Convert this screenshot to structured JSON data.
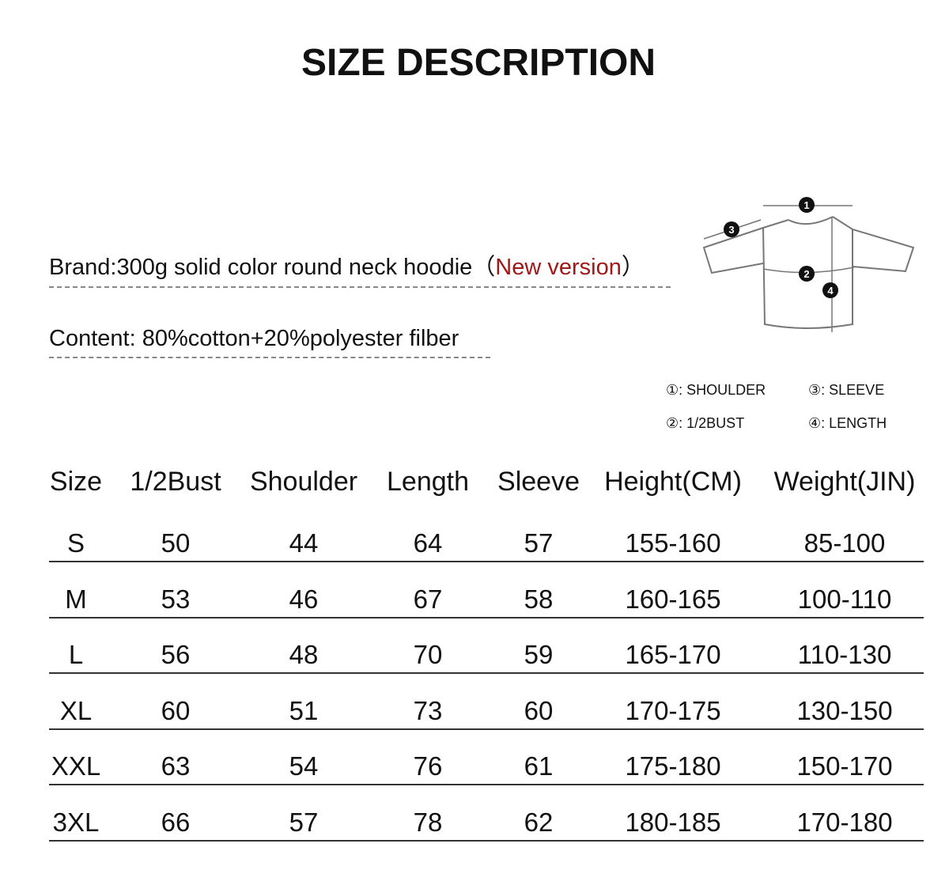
{
  "title": "SIZE DESCRIPTION",
  "brand": {
    "label": "Brand:",
    "text": "300g solid color round neck hoodie（",
    "highlight": "New version",
    "close": "）"
  },
  "content": {
    "label": "Content:",
    "text": "80%cotton+20%polyester filber"
  },
  "diagram_markers": [
    "1",
    "2",
    "3",
    "4"
  ],
  "legend": [
    {
      "marker": "①:",
      "label": "SHOULDER"
    },
    {
      "marker": "③:",
      "label": "SLEEVE"
    },
    {
      "marker": "②:",
      "label": "1/2BUST"
    },
    {
      "marker": "④:",
      "label": "LENGTH"
    }
  ],
  "colors": {
    "highlight": "#a01818"
  },
  "table": {
    "headers": [
      "Size",
      "1/2Bust",
      "Shoulder",
      "Length",
      "Sleeve",
      "Height(CM)",
      "Weight(JIN)"
    ],
    "rows": [
      [
        "S",
        "50",
        "44",
        "64",
        "57",
        "155-160",
        "85-100"
      ],
      [
        "M",
        "53",
        "46",
        "67",
        "58",
        "160-165",
        "100-110"
      ],
      [
        "L",
        "56",
        "48",
        "70",
        "59",
        "165-170",
        "110-130"
      ],
      [
        "XL",
        "60",
        "51",
        "73",
        "60",
        "170-175",
        "130-150"
      ],
      [
        "XXL",
        "63",
        "54",
        "76",
        "61",
        "175-180",
        "150-170"
      ],
      [
        "3XL",
        "66",
        "57",
        "78",
        "62",
        "180-185",
        "170-180"
      ]
    ]
  }
}
